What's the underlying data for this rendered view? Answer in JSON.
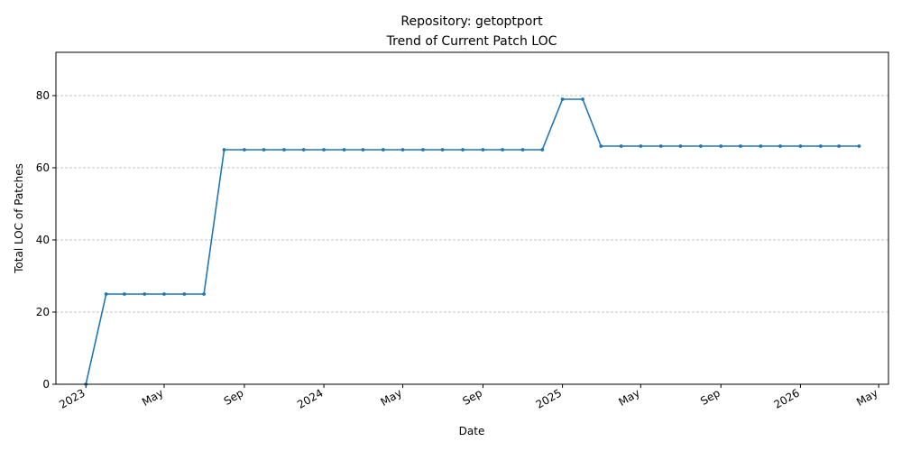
{
  "chart_data": {
    "type": "line",
    "title": "Repository: getoptport",
    "subtitle": "Trend of Current Patch LOC",
    "xlabel": "Date",
    "ylabel": "Total LOC of Patches",
    "ylim": [
      0,
      92
    ],
    "xlim": [
      "2022-11-16",
      "2026-05-16"
    ],
    "y_ticks": [
      0,
      20,
      40,
      60,
      80
    ],
    "x_ticks": [
      {
        "date": "2023-01-01",
        "label": "2023"
      },
      {
        "date": "2023-05-01",
        "label": "May"
      },
      {
        "date": "2023-09-01",
        "label": "Sep"
      },
      {
        "date": "2024-01-01",
        "label": "2024"
      },
      {
        "date": "2024-05-01",
        "label": "May"
      },
      {
        "date": "2024-09-01",
        "label": "Sep"
      },
      {
        "date": "2025-01-01",
        "label": "2025"
      },
      {
        "date": "2025-05-01",
        "label": "May"
      },
      {
        "date": "2025-09-01",
        "label": "Sep"
      },
      {
        "date": "2026-01-01",
        "label": "2026"
      },
      {
        "date": "2026-05-01",
        "label": "May"
      }
    ],
    "grid": "y-dashed",
    "line_color": "#1f77b4",
    "series": [
      {
        "x": [
          "2023-01-01",
          "2023-02-01",
          "2023-03-01",
          "2023-04-01",
          "2023-05-01",
          "2023-06-01",
          "2023-07-01",
          "2023-08-01",
          "2023-09-01",
          "2023-10-01",
          "2023-11-01",
          "2023-12-01",
          "2024-01-01",
          "2024-02-01",
          "2024-03-01",
          "2024-04-01",
          "2024-05-01",
          "2024-06-01",
          "2024-07-01",
          "2024-08-01",
          "2024-09-01",
          "2024-10-01",
          "2024-11-01",
          "2024-12-01",
          "2025-01-01",
          "2025-02-01",
          "2025-03-01",
          "2025-04-01",
          "2025-05-01",
          "2025-06-01",
          "2025-07-01",
          "2025-08-01",
          "2025-09-01",
          "2025-10-01",
          "2025-11-01",
          "2025-12-01",
          "2026-01-01",
          "2026-02-01",
          "2026-03-01",
          "2026-04-01"
        ],
        "values": [
          0,
          25,
          25,
          25,
          25,
          25,
          25,
          65,
          65,
          65,
          65,
          65,
          65,
          65,
          65,
          65,
          65,
          65,
          65,
          65,
          65,
          65,
          65,
          65,
          79,
          79,
          66,
          66,
          66,
          66,
          66,
          66,
          66,
          66,
          66,
          66,
          66,
          66,
          66,
          66
        ]
      }
    ]
  }
}
